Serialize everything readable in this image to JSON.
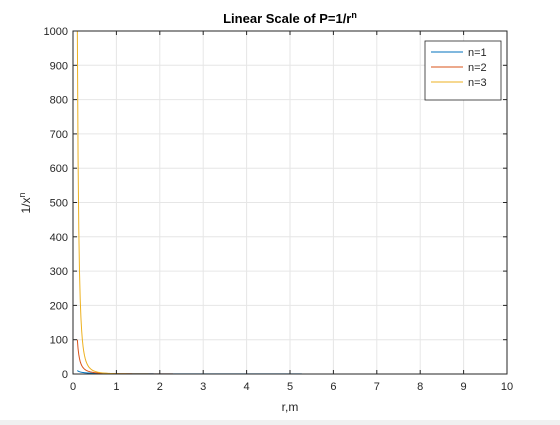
{
  "colors": {
    "n1": "#0072BD",
    "n2": "#D95319",
    "n3": "#EDB120",
    "grid": "#e6e6e6",
    "axis": "#262626"
  },
  "chart_data": {
    "type": "line",
    "title": {
      "prefix": "Linear Scale of P=1/r",
      "superscript": "n"
    },
    "xlabel": "r,m",
    "ylabel": {
      "base": "1/x",
      "superscript": "n"
    },
    "xlim": [
      0,
      10
    ],
    "ylim": [
      0,
      1000
    ],
    "xticks": [
      0,
      1,
      2,
      3,
      4,
      5,
      6,
      7,
      8,
      9,
      10
    ],
    "yticks": [
      0,
      100,
      200,
      300,
      400,
      500,
      600,
      700,
      800,
      900,
      1000
    ],
    "grid": true,
    "legend_location": "top-right",
    "function": "1/r^n",
    "x_range": [
      0.1,
      10
    ],
    "series": [
      {
        "name": "n=1",
        "exponent": 1,
        "color_key": "n1"
      },
      {
        "name": "n=2",
        "exponent": 2,
        "color_key": "n2"
      },
      {
        "name": "n=3",
        "exponent": 3,
        "color_key": "n3"
      }
    ]
  }
}
